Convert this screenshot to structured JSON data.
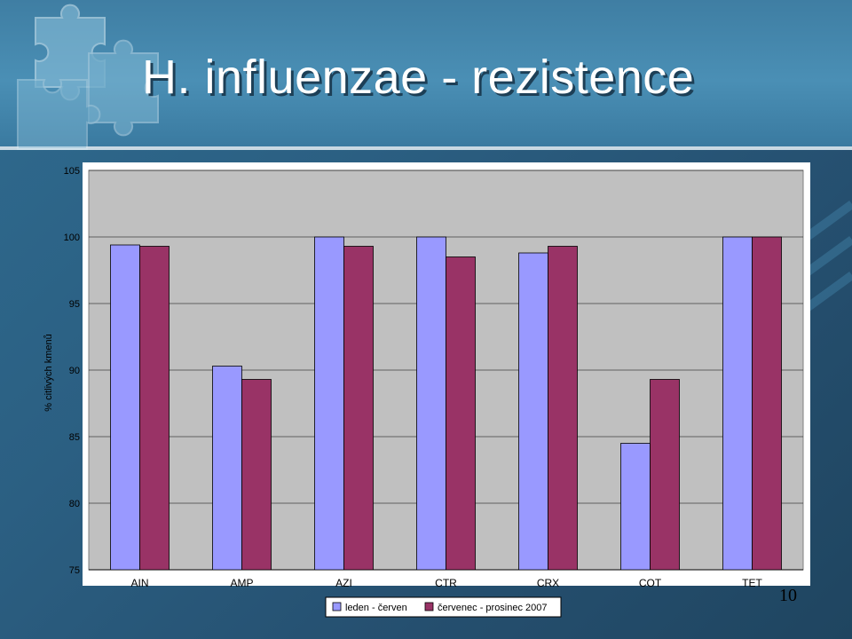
{
  "slide": {
    "title": "H. influenzae - rezistence",
    "number": "10"
  },
  "colors": {
    "series1": "#9999ff",
    "series2": "#993366",
    "plot_bg": "#c0c0c0",
    "grid": "#000000"
  },
  "chart_data": {
    "type": "bar",
    "title": "",
    "xlabel": "",
    "ylabel": "% citlivých kmenů",
    "categories": [
      "AIN",
      "AMP",
      "AZI",
      "CTR",
      "CRX",
      "COT",
      "TET"
    ],
    "series": [
      {
        "name": "leden - červen",
        "values": [
          99.4,
          90.3,
          100,
          100,
          98.8,
          84.5,
          100
        ]
      },
      {
        "name": "červenec - prosinec 2007",
        "values": [
          99.3,
          89.3,
          99.3,
          98.5,
          99.3,
          89.3,
          100
        ]
      }
    ],
    "yticks": [
      75,
      80,
      85,
      90,
      95,
      100,
      105
    ],
    "ylim": [
      75,
      105
    ],
    "grid": true,
    "legend": "bottom"
  }
}
